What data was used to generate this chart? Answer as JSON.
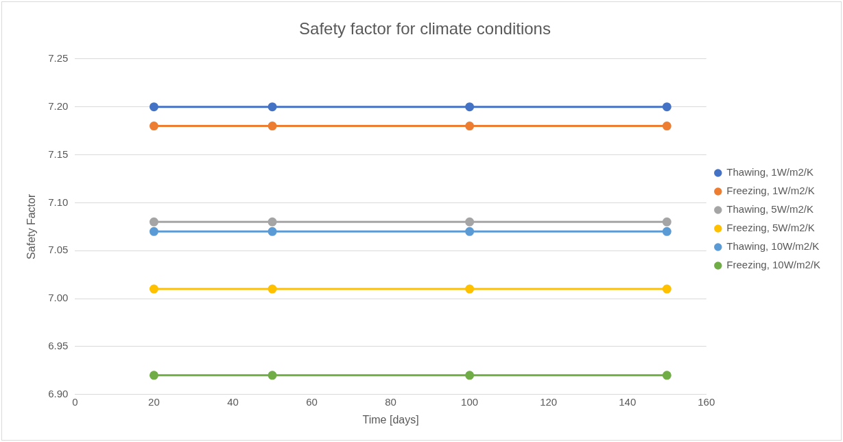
{
  "chart_data": {
    "type": "line",
    "title": "Safety factor for climate conditions",
    "xlabel": "Time [days]",
    "ylabel": "Safety Factor",
    "x": [
      20,
      50,
      100,
      150
    ],
    "series": [
      {
        "name": "Thawing, 1W/m2/K",
        "color": "#4472c4",
        "values": [
          7.2,
          7.2,
          7.2,
          7.2
        ]
      },
      {
        "name": "Freezing, 1W/m2/K",
        "color": "#ed7d31",
        "values": [
          7.18,
          7.18,
          7.18,
          7.18
        ]
      },
      {
        "name": "Thawing, 5W/m2/K",
        "color": "#a5a5a5",
        "values": [
          7.08,
          7.08,
          7.08,
          7.08
        ]
      },
      {
        "name": "Freezing, 5W/m2/K",
        "color": "#ffc000",
        "values": [
          7.01,
          7.01,
          7.01,
          7.01
        ]
      },
      {
        "name": "Thawing, 10W/m2/K",
        "color": "#5b9bd5",
        "values": [
          7.07,
          7.07,
          7.07,
          7.07
        ]
      },
      {
        "name": "Freezing, 10W/m2/K",
        "color": "#70ad47",
        "values": [
          6.92,
          6.92,
          6.92,
          6.92
        ]
      }
    ],
    "xlim": [
      0,
      160
    ],
    "xticks": [
      0,
      20,
      40,
      60,
      80,
      100,
      120,
      140,
      160
    ],
    "ylim": [
      6.9,
      7.25
    ],
    "yticks": [
      {
        "value": 6.9,
        "label": "6.90"
      },
      {
        "value": 6.95,
        "label": "6.95"
      },
      {
        "value": 7,
        "label": "7.00"
      },
      {
        "value": 7.05,
        "label": "7.05"
      },
      {
        "value": 7.1,
        "label": "7.10"
      },
      {
        "value": 7.15,
        "label": "7.15"
      },
      {
        "value": 7.2,
        "label": "7.20"
      },
      {
        "value": 7.25,
        "label": "7.25"
      }
    ],
    "grid": "y",
    "legend": "right",
    "marker": "circle",
    "line_style": "solid"
  }
}
